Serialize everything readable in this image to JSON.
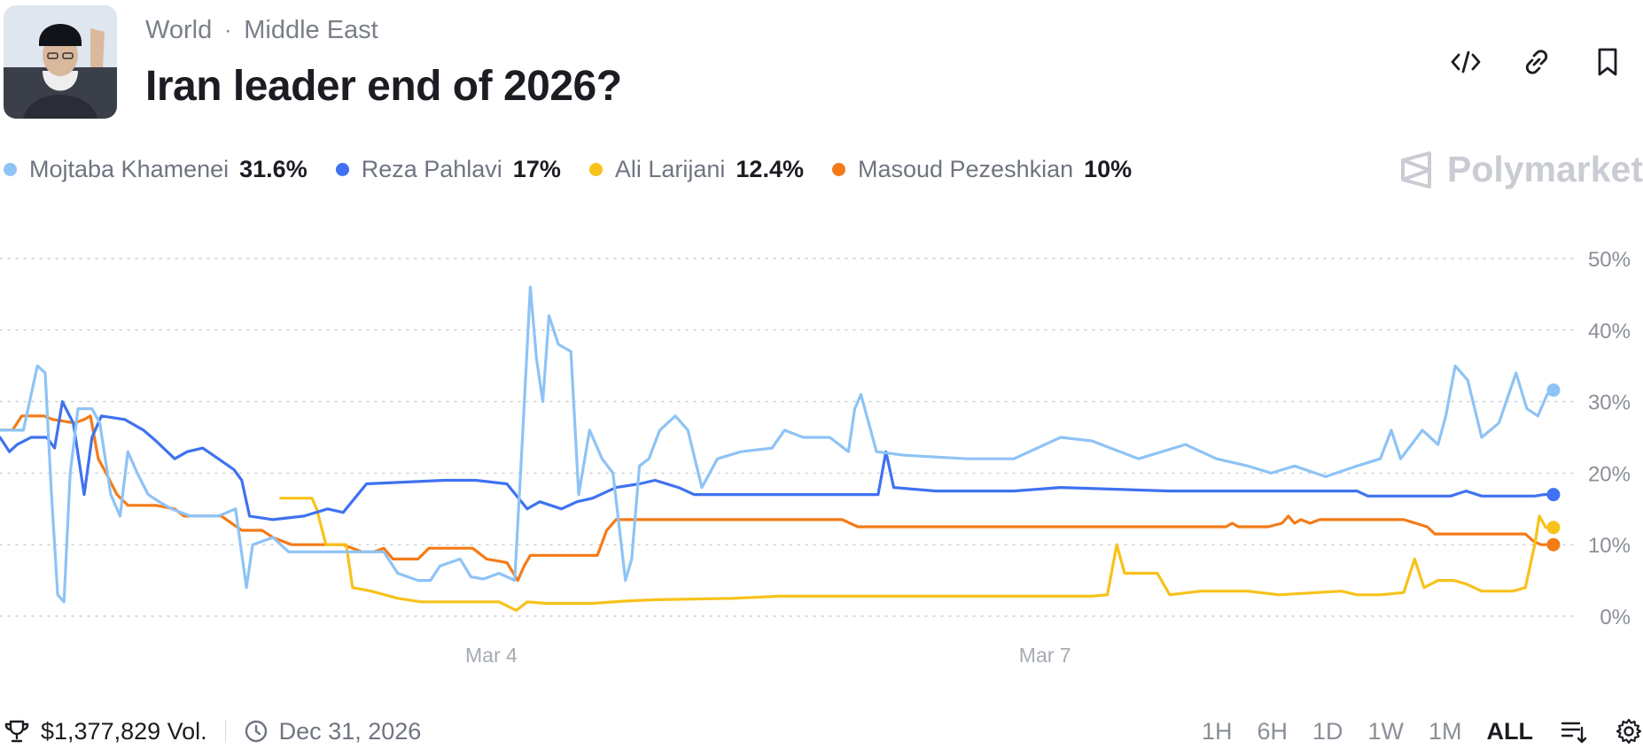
{
  "header": {
    "breadcrumb": [
      "World",
      "Middle East"
    ],
    "title": "Iran leader end of 2026?",
    "icons": [
      "embed-code-icon",
      "link-icon",
      "bookmark-icon"
    ]
  },
  "legend": [
    {
      "name": "Mojtaba Khamenei",
      "value": "31.6%",
      "color": "#8ec3f5"
    },
    {
      "name": "Reza Pahlavi",
      "value": "17%",
      "color": "#3f72f0"
    },
    {
      "name": "Ali Larijani",
      "value": "12.4%",
      "color": "#f7c21a"
    },
    {
      "name": "Masoud Pezeshkian",
      "value": "10%",
      "color": "#f47b17"
    }
  ],
  "brand": "Polymarket",
  "chart_data": {
    "type": "line",
    "title": "",
    "ylim": [
      0,
      50
    ],
    "yticks": [
      "0%",
      "10%",
      "20%",
      "30%",
      "40%",
      "50%"
    ],
    "xlim": [
      0,
      100
    ],
    "xticks": [
      {
        "x": 31.5,
        "label": "Mar 4"
      },
      {
        "x": 67,
        "label": "Mar 7"
      }
    ],
    "grid": true,
    "series": [
      {
        "name": "Mojtaba Khamenei",
        "color": "#8ec3f5",
        "points": [
          [
            0,
            26
          ],
          [
            1.5,
            26
          ],
          [
            2.4,
            35
          ],
          [
            2.9,
            34
          ],
          [
            3.3,
            17
          ],
          [
            3.7,
            3
          ],
          [
            4.1,
            2
          ],
          [
            4.5,
            20
          ],
          [
            5,
            29
          ],
          [
            5.9,
            29
          ],
          [
            6.4,
            27
          ],
          [
            7.1,
            17
          ],
          [
            7.7,
            14
          ],
          [
            8.2,
            23
          ],
          [
            8.8,
            20
          ],
          [
            9.5,
            17
          ],
          [
            10.2,
            16
          ],
          [
            11,
            15
          ],
          [
            12.2,
            14
          ],
          [
            13.5,
            14
          ],
          [
            14,
            14
          ],
          [
            15.1,
            15
          ],
          [
            15.8,
            4
          ],
          [
            16.2,
            10
          ],
          [
            17.5,
            11
          ],
          [
            18.5,
            9
          ],
          [
            22,
            9
          ],
          [
            24.6,
            9
          ],
          [
            25.5,
            6
          ],
          [
            26.8,
            5
          ],
          [
            27.6,
            5
          ],
          [
            28.2,
            7
          ],
          [
            29.5,
            8
          ],
          [
            30.2,
            5.5
          ],
          [
            31,
            5.2
          ],
          [
            32,
            6
          ],
          [
            33,
            5
          ],
          [
            33.5,
            25
          ],
          [
            34,
            46
          ],
          [
            34.4,
            36
          ],
          [
            34.8,
            30
          ],
          [
            35.2,
            42
          ],
          [
            35.8,
            38
          ],
          [
            36.6,
            37
          ],
          [
            37.1,
            17
          ],
          [
            37.8,
            26
          ],
          [
            38.6,
            22
          ],
          [
            39.3,
            20
          ],
          [
            40.1,
            5
          ],
          [
            40.5,
            8
          ],
          [
            41,
            21
          ],
          [
            41.6,
            22
          ],
          [
            42.3,
            26
          ],
          [
            43.3,
            28
          ],
          [
            44.1,
            26
          ],
          [
            45,
            18
          ],
          [
            46,
            22
          ],
          [
            47.5,
            23
          ],
          [
            49.5,
            23.5
          ],
          [
            50.3,
            26
          ],
          [
            51.5,
            25
          ],
          [
            53.2,
            25
          ],
          [
            54.4,
            23
          ],
          [
            54.8,
            29
          ],
          [
            55.2,
            31
          ],
          [
            56.2,
            23
          ],
          [
            58,
            22.5
          ],
          [
            62,
            22
          ],
          [
            65,
            22
          ],
          [
            67,
            24
          ],
          [
            68,
            25
          ],
          [
            70,
            24.5
          ],
          [
            73,
            22
          ],
          [
            76,
            24
          ],
          [
            78,
            22
          ],
          [
            80,
            21
          ],
          [
            81.5,
            20
          ],
          [
            83,
            21
          ],
          [
            85,
            19.5
          ],
          [
            87,
            21
          ],
          [
            88.5,
            22
          ],
          [
            89.2,
            26
          ],
          [
            89.8,
            22
          ],
          [
            91.2,
            26
          ],
          [
            92.2,
            24
          ],
          [
            92.7,
            28
          ],
          [
            93.3,
            35
          ],
          [
            94.1,
            33
          ],
          [
            95,
            25
          ],
          [
            96.1,
            27
          ],
          [
            97.2,
            34
          ],
          [
            97.9,
            29
          ],
          [
            98.6,
            28
          ],
          [
            99.2,
            31
          ],
          [
            99.6,
            31.6
          ]
        ]
      },
      {
        "name": "Reza Pahlavi",
        "color": "#3f72f0",
        "points": [
          [
            0,
            25
          ],
          [
            0.6,
            23
          ],
          [
            1.1,
            24
          ],
          [
            2,
            25
          ],
          [
            3,
            25
          ],
          [
            3.5,
            23.5
          ],
          [
            4,
            30
          ],
          [
            4.7,
            27
          ],
          [
            5.4,
            17
          ],
          [
            5.9,
            25
          ],
          [
            6.5,
            28
          ],
          [
            8,
            27.5
          ],
          [
            9.2,
            26
          ],
          [
            10,
            24.5
          ],
          [
            11.2,
            22
          ],
          [
            12,
            23
          ],
          [
            13,
            23.5
          ],
          [
            14,
            22
          ],
          [
            15,
            20.5
          ],
          [
            15.5,
            19
          ],
          [
            16,
            14
          ],
          [
            17.5,
            13.5
          ],
          [
            19.5,
            14
          ],
          [
            21,
            15
          ],
          [
            22,
            14.5
          ],
          [
            23.5,
            18.5
          ],
          [
            28.5,
            19
          ],
          [
            30.5,
            19
          ],
          [
            32.5,
            18.5
          ],
          [
            33.8,
            15
          ],
          [
            34.6,
            16
          ],
          [
            36,
            15
          ],
          [
            37,
            16
          ],
          [
            38,
            16.5
          ],
          [
            39.5,
            18
          ],
          [
            41,
            18.5
          ],
          [
            42,
            19
          ],
          [
            43.5,
            18
          ],
          [
            44.5,
            17
          ],
          [
            50,
            17
          ],
          [
            52.5,
            17
          ],
          [
            55,
            17
          ],
          [
            56.3,
            17
          ],
          [
            56.8,
            23
          ],
          [
            57.3,
            18
          ],
          [
            60,
            17.5
          ],
          [
            65,
            17.5
          ],
          [
            68,
            18
          ],
          [
            75,
            17.5
          ],
          [
            80,
            17.5
          ],
          [
            87,
            17.5
          ],
          [
            87.7,
            16.8
          ],
          [
            90,
            16.8
          ],
          [
            93,
            16.8
          ],
          [
            94,
            17.5
          ],
          [
            95,
            16.8
          ],
          [
            97,
            16.8
          ],
          [
            98.4,
            16.8
          ],
          [
            99,
            17
          ],
          [
            99.6,
            17
          ]
        ]
      },
      {
        "name": "Ali Larijani",
        "color": "#f7c21a",
        "points": [
          [
            18,
            16.5
          ],
          [
            20,
            16.5
          ],
          [
            20.3,
            15
          ],
          [
            20.9,
            10
          ],
          [
            22.2,
            10
          ],
          [
            22.6,
            4
          ],
          [
            23.8,
            3.5
          ],
          [
            25.5,
            2.5
          ],
          [
            27,
            2
          ],
          [
            29,
            2
          ],
          [
            32,
            2
          ],
          [
            33.1,
            0.8
          ],
          [
            33.8,
            2
          ],
          [
            35,
            1.8
          ],
          [
            38,
            1.8
          ],
          [
            40,
            2.1
          ],
          [
            42,
            2.3
          ],
          [
            47,
            2.5
          ],
          [
            50,
            2.8
          ],
          [
            55,
            2.8
          ],
          [
            60,
            2.8
          ],
          [
            65,
            2.8
          ],
          [
            70,
            2.8
          ],
          [
            71,
            3
          ],
          [
            71.6,
            10
          ],
          [
            72.1,
            6
          ],
          [
            74.2,
            6
          ],
          [
            75,
            3
          ],
          [
            77,
            3.5
          ],
          [
            80,
            3.5
          ],
          [
            82,
            3
          ],
          [
            86,
            3.5
          ],
          [
            87,
            3
          ],
          [
            88.5,
            3
          ],
          [
            90,
            3.3
          ],
          [
            90.7,
            8
          ],
          [
            91.3,
            4
          ],
          [
            92.2,
            5
          ],
          [
            93.2,
            5
          ],
          [
            94,
            4.5
          ],
          [
            95,
            3.5
          ],
          [
            97,
            3.5
          ],
          [
            97.8,
            4
          ],
          [
            98.4,
            10
          ],
          [
            98.7,
            14
          ],
          [
            99.1,
            12.4
          ],
          [
            99.6,
            12.4
          ]
        ]
      },
      {
        "name": "Masoud Pezeshkian",
        "color": "#f47b17",
        "points": [
          [
            0,
            26
          ],
          [
            0.8,
            26
          ],
          [
            1.4,
            28
          ],
          [
            2.8,
            28
          ],
          [
            3.4,
            27.5
          ],
          [
            4.8,
            27
          ],
          [
            5.4,
            27.5
          ],
          [
            5.8,
            28
          ],
          [
            6.3,
            22
          ],
          [
            6.8,
            20
          ],
          [
            7.5,
            17
          ],
          [
            8.2,
            15.5
          ],
          [
            10,
            15.5
          ],
          [
            11.2,
            15
          ],
          [
            11.8,
            14
          ],
          [
            14.2,
            14
          ],
          [
            15.5,
            12
          ],
          [
            16.8,
            12
          ],
          [
            17.5,
            11
          ],
          [
            18.7,
            10
          ],
          [
            20.2,
            10
          ],
          [
            22,
            10
          ],
          [
            23.2,
            9
          ],
          [
            24,
            9
          ],
          [
            24.6,
            9.5
          ],
          [
            25.2,
            8
          ],
          [
            26.8,
            8
          ],
          [
            27.5,
            9.5
          ],
          [
            30.3,
            9.5
          ],
          [
            31.2,
            8
          ],
          [
            32.5,
            7.5
          ],
          [
            33.2,
            5
          ],
          [
            33.6,
            7
          ],
          [
            34,
            8.5
          ],
          [
            35.8,
            8.5
          ],
          [
            38.3,
            8.5
          ],
          [
            38.9,
            12
          ],
          [
            39.5,
            13.5
          ],
          [
            44,
            13.5
          ],
          [
            54,
            13.5
          ],
          [
            55,
            12.5
          ],
          [
            60,
            12.5
          ],
          [
            65,
            12.5
          ],
          [
            70,
            12.5
          ],
          [
            75,
            12.5
          ],
          [
            78.6,
            12.5
          ],
          [
            79,
            13
          ],
          [
            79.4,
            12.5
          ],
          [
            80,
            12.5
          ],
          [
            81.3,
            12.5
          ],
          [
            82.2,
            13
          ],
          [
            82.6,
            14
          ],
          [
            83,
            13
          ],
          [
            83.4,
            13.5
          ],
          [
            84,
            13
          ],
          [
            84.6,
            13.5
          ],
          [
            90,
            13.5
          ],
          [
            91.5,
            12.5
          ],
          [
            92,
            11.5
          ],
          [
            95,
            11.5
          ],
          [
            97.8,
            11.5
          ],
          [
            98.3,
            10.5
          ],
          [
            98.8,
            10
          ],
          [
            99.6,
            10
          ]
        ]
      }
    ]
  },
  "footer": {
    "volume": "$1,377,829 Vol.",
    "end_date": "Dec 31, 2026"
  },
  "timeframes": [
    "1H",
    "6H",
    "1D",
    "1W",
    "1M",
    "ALL"
  ],
  "active_timeframe": "ALL"
}
